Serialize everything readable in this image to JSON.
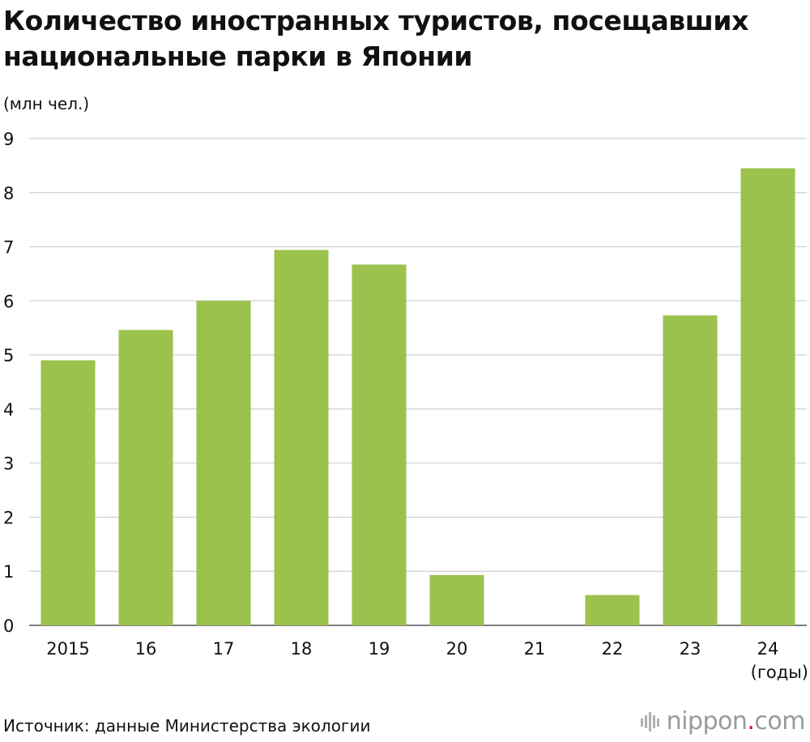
{
  "chart_data": {
    "type": "bar",
    "title": "Количество иностранных туристов, посещавших национальные парки в Японии",
    "ylabel": "(млн чел.)",
    "xlabel": "(годы)",
    "categories": [
      "2015",
      "16",
      "17",
      "18",
      "19",
      "20",
      "21",
      "22",
      "23",
      "24"
    ],
    "values": [
      4.9,
      5.46,
      6.0,
      6.94,
      6.67,
      0.93,
      0,
      0.56,
      5.73,
      8.45
    ],
    "ylim": [
      0,
      9
    ],
    "yticks": [
      "0",
      "1",
      "2",
      "3",
      "4",
      "5",
      "6",
      "7",
      "8",
      "9"
    ],
    "grid": true,
    "bar_color": "#9bc24d",
    "grid_color": "#cfcfcf"
  },
  "source": "Источник: данные Министерства экологии",
  "logo": {
    "name": "nippon",
    "dot": ".",
    "tld": "com",
    "icon": "nippon-logo-icon",
    "dot_color": "#e4002b"
  }
}
